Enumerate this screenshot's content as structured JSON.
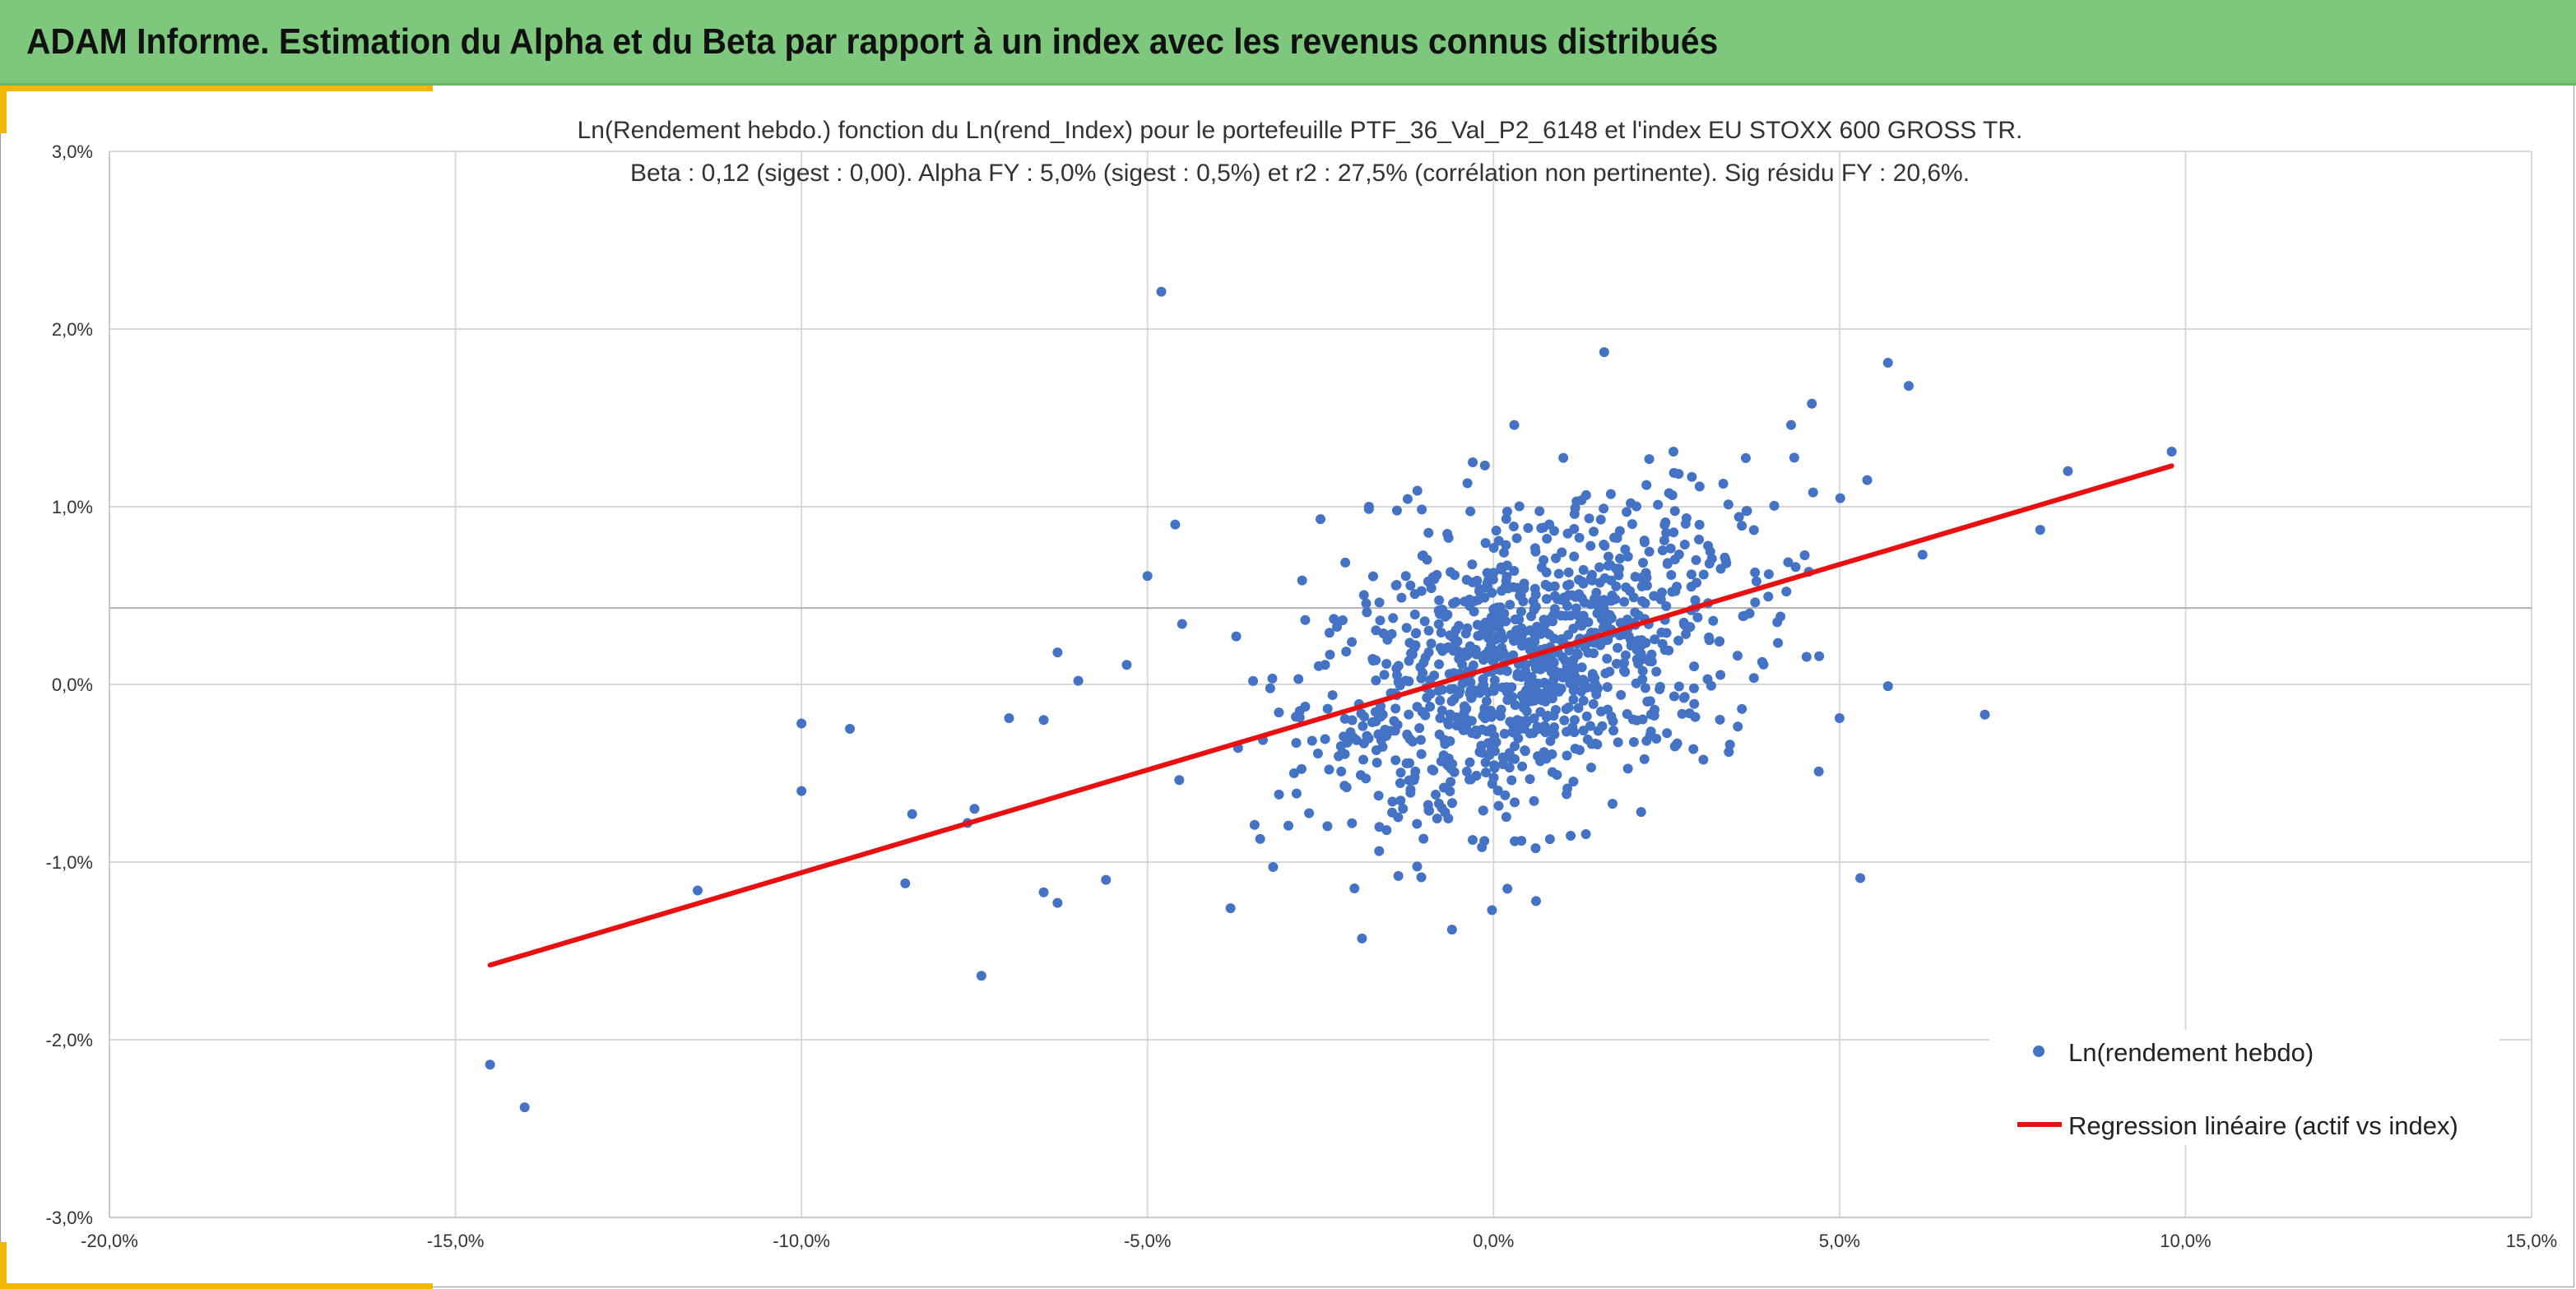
{
  "header": {
    "title": "ADAM Informe. Estimation du Alpha et du Beta par rapport à un index avec les revenus connus distribués"
  },
  "colors": {
    "header_bg": "#7dc87d",
    "accent": "#f2b705",
    "scatter": "#4472c4",
    "regression": "#e81010",
    "grid": "#d9d9d9"
  },
  "chart_data": {
    "type": "scatter",
    "title": "Ln(Rendement hebdo.) fonction du Ln(rend_Index) pour le portefeuille PTF_36_Val_P2_6148 et l'index EU STOXX 600 GROSS TR.",
    "subtitle": "Beta : 0,12 (sigest : 0,00). Alpha FY : 5,0% (sigest : 0,5%) et r2 : 27,5% (corrélation non pertinente). Sig résidu FY : 20,6%.",
    "xlim": [
      -20,
      15
    ],
    "ylim": [
      -3,
      3
    ],
    "x_ticks": [
      "-20,0%",
      "-15,0%",
      "-10,0%",
      "-5,0%",
      "0,0%",
      "5,0%",
      "10,0%",
      "15,0%"
    ],
    "y_ticks": [
      "3,0%",
      "2,0%",
      "1,0%",
      "0,0%",
      "-1,0%",
      "-2,0%",
      "-3,0%"
    ],
    "grid": true,
    "reference_line_y": 0.43,
    "legend_position": "bottom-right",
    "series": [
      {
        "name": "Ln(rendement hebdo)",
        "type": "scatter",
        "points": [
          [
            -4.8,
            2.21
          ],
          [
            1.6,
            1.87
          ],
          [
            5.7,
            1.81
          ],
          [
            6.0,
            1.68
          ],
          [
            -14.5,
            -2.14
          ],
          [
            -14.0,
            -2.38
          ],
          [
            -11.5,
            -1.16
          ],
          [
            -10.0,
            -0.22
          ],
          [
            -9.3,
            -0.25
          ],
          [
            -10.0,
            -0.6
          ],
          [
            -8.4,
            -0.73
          ],
          [
            -8.5,
            -1.12
          ],
          [
            -7.5,
            -0.7
          ],
          [
            -7.4,
            -1.64
          ],
          [
            -7.6,
            -0.78
          ],
          [
            -7.0,
            -0.19
          ],
          [
            -6.5,
            -0.2
          ],
          [
            -6.3,
            0.18
          ],
          [
            -6.0,
            0.02
          ],
          [
            -6.5,
            -1.17
          ],
          [
            -6.3,
            -1.23
          ],
          [
            -5.0,
            0.61
          ],
          [
            -4.6,
            0.9
          ],
          [
            -4.5,
            0.34
          ],
          [
            -5.3,
            0.11
          ],
          [
            -5.6,
            -1.1
          ],
          [
            -1.9,
            -1.43
          ],
          [
            -0.6,
            -1.38
          ],
          [
            0.2,
            -1.15
          ],
          [
            5.3,
            -1.09
          ],
          [
            8.3,
            1.2
          ],
          [
            9.8,
            1.31
          ],
          [
            7.9,
            0.87
          ],
          [
            7.1,
            -0.17
          ],
          [
            5.4,
            1.15
          ],
          [
            4.6,
            1.58
          ],
          [
            4.3,
            1.46
          ],
          [
            5.7,
            -0.01
          ],
          [
            6.2,
            0.73
          ],
          [
            0.3,
            1.46
          ],
          [
            2.6,
            1.31
          ],
          [
            -1.1,
            1.09
          ],
          [
            -2.5,
            0.93
          ],
          [
            -1.8,
            1.0
          ],
          [
            -0.3,
            1.25
          ],
          [
            5.0,
            -0.19
          ],
          [
            4.7,
            -0.49
          ],
          [
            3.4,
            -0.38
          ],
          [
            -3.8,
            -1.26
          ],
          [
            -2.8,
            -0.15
          ],
          [
            1.5,
            0.4
          ],
          [
            2.2,
            0.62
          ],
          [
            3.1,
            0.78
          ],
          [
            -1.2,
            -0.61
          ],
          [
            0.7,
            -0.09
          ],
          [
            1.9,
            0.07
          ],
          [
            -0.5,
            0.33
          ],
          [
            0.8,
            0.55
          ],
          [
            1.1,
            0.12
          ],
          [
            -0.9,
            0.23
          ],
          [
            0.4,
            0.41
          ],
          [
            1.3,
            -0.26
          ],
          [
            -0.2,
            -0.38
          ],
          [
            2.5,
            0.29
          ],
          [
            0.9,
            0.71
          ],
          [
            -1.6,
            -0.17
          ],
          [
            0.1,
            0.08
          ],
          [
            1.7,
            0.47
          ],
          [
            -2.2,
            -0.49
          ],
          [
            0.6,
            0.19
          ],
          [
            3.8,
            0.58
          ],
          [
            4.1,
            0.35
          ],
          [
            -3.1,
            -0.62
          ],
          [
            2.9,
            -0.11
          ],
          [
            -0.7,
            -0.72
          ],
          [
            0.5,
            0.88
          ],
          [
            1.2,
            1.03
          ],
          [
            -1.4,
            0.56
          ]
        ]
      },
      {
        "name": "Regression linéaire (actif vs index)",
        "type": "line",
        "points": [
          [
            -14.5,
            -1.58
          ],
          [
            9.8,
            1.23
          ]
        ]
      }
    ],
    "cloud": {
      "count": 1050,
      "center_x": 0.5,
      "center_y": 0.12,
      "spread_x": 1.55,
      "spread_y": 0.4,
      "slope": 0.12
    }
  }
}
